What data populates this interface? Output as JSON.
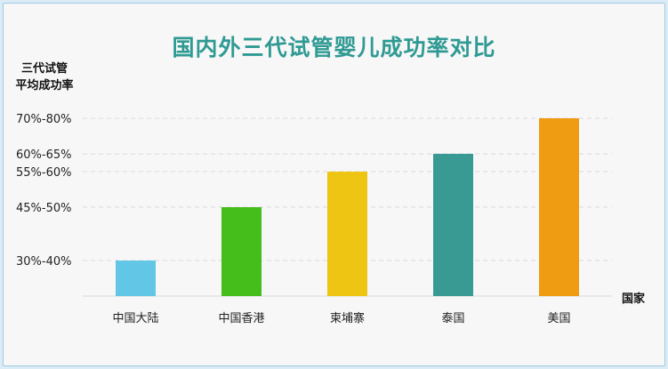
{
  "chart_data": {
    "type": "bar",
    "title": "国内外三代试管婴儿成功率对比",
    "ylabel": [
      "三代试管",
      "平均成功率"
    ],
    "xlabel": "国家",
    "ytick_labels": [
      "70%-80%",
      "60%-65%",
      "55%-60%",
      "45%-50%",
      "30%-40%"
    ],
    "categories": [
      "中国大陆",
      "中国香港",
      "柬埔寨",
      "泰国",
      "美国"
    ],
    "values": [
      30,
      45,
      55,
      60,
      70
    ],
    "ylim": [
      20,
      80
    ],
    "grid": true,
    "colors": [
      "#62c7e6",
      "#45bd1b",
      "#edc512",
      "#399a94",
      "#ef9c12"
    ]
  }
}
